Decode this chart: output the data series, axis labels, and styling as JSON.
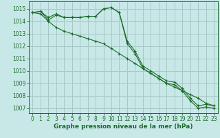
{
  "background_color": "#c8e8e8",
  "grid_color": "#a8c8c8",
  "line_color": "#1a6b2a",
  "title": "Graphe pression niveau de la mer (hPa)",
  "ylim": [
    1006.6,
    1015.6
  ],
  "xlim": [
    -0.5,
    23.5
  ],
  "yticks": [
    1007,
    1008,
    1009,
    1010,
    1011,
    1012,
    1013,
    1014,
    1015
  ],
  "xticks": [
    0,
    1,
    2,
    3,
    4,
    5,
    6,
    7,
    8,
    9,
    10,
    11,
    12,
    13,
    14,
    15,
    16,
    17,
    18,
    19,
    20,
    21,
    22,
    23
  ],
  "series": [
    [
      1014.7,
      1014.8,
      1014.3,
      1014.6,
      1014.3,
      1014.3,
      1014.3,
      1014.4,
      1014.4,
      1015.0,
      1015.1,
      1014.7,
      1012.4,
      1011.6,
      1010.4,
      1010.0,
      1009.6,
      1009.2,
      1009.1,
      1008.6,
      1007.8,
      1007.2,
      1007.3,
      1007.2
    ],
    [
      1014.7,
      1014.8,
      1014.1,
      1014.5,
      1014.3,
      1014.3,
      1014.3,
      1014.4,
      1014.4,
      1015.0,
      1015.1,
      1014.7,
      1012.2,
      1011.4,
      1010.2,
      1009.8,
      1009.4,
      1009.0,
      1008.9,
      1008.4,
      1007.6,
      1007.0,
      1007.1,
      1007.0
    ],
    [
      1014.7,
      1014.6,
      1014.0,
      1013.5,
      1013.2,
      1013.0,
      1012.8,
      1012.6,
      1012.4,
      1012.2,
      1011.8,
      1011.4,
      1011.0,
      1010.6,
      1010.2,
      1009.8,
      1009.4,
      1009.0,
      1008.7,
      1008.4,
      1008.1,
      1007.8,
      1007.4,
      1007.2
    ]
  ],
  "ylabel_fontsize": 5.5,
  "xlabel_fontsize": 5.5,
  "title_fontsize": 6.5
}
